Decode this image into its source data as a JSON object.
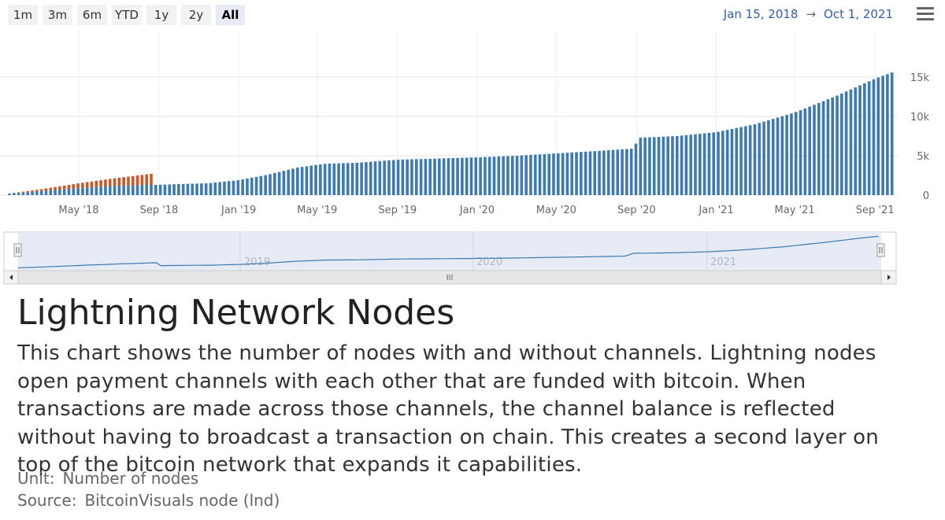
{
  "toolbar": {
    "range_buttons": [
      "1m",
      "3m",
      "6m",
      "YTD",
      "1y",
      "2y",
      "All"
    ],
    "selected": "All",
    "date_from": "Jan 15, 2018",
    "date_to": "Oct 1, 2021",
    "arrow": "→"
  },
  "colors": {
    "with_channels": "#3d7ab0",
    "without_channels": "#c8582a",
    "navigator_line": "#3d7ab0",
    "navigator_fill": "#e6ebf5"
  },
  "navigator": {
    "year_labels": [
      "2019",
      "2020",
      "2021"
    ],
    "scroll_grip": "III"
  },
  "article": {
    "title": "Lightning Network Nodes",
    "description": "This chart shows the number of nodes with and without channels. Lightning nodes open payment channels with each other that are funded with bitcoin. When transactions are made across those channels, the channel balance is reflected without having to broadcast a transaction on chain. This creates a second layer on top of the bitcoin network that expands it capabilities.",
    "unit_label": "Unit:",
    "unit_value": "Number of nodes",
    "source_label": "Source:",
    "source_value": "BitcoinVisuals node (lnd)"
  },
  "chart_data": {
    "type": "bar",
    "stacked": true,
    "x_start": "2018-01-15",
    "x_end": "2021-10-01",
    "x_tick_labels": [
      "May '18",
      "Sep '18",
      "Jan '19",
      "May '19",
      "Sep '19",
      "Jan '20",
      "May '20",
      "Sep '20",
      "Jan '21",
      "May '21",
      "Sep '21"
    ],
    "y_tick_labels": [
      "0",
      "5k",
      "10k",
      "15k"
    ],
    "ylim": [
      0,
      20000
    ],
    "grid": true,
    "series": [
      {
        "values_note": "weekly bars; blue lower segment",
        "points": [
          [
            "2018-01-15",
            200
          ],
          [
            "2018-03-01",
            500
          ],
          [
            "2018-05-01",
            900
          ],
          [
            "2018-07-01",
            1200
          ],
          [
            "2018-08-20",
            1300
          ],
          [
            "2018-08-27",
            1300
          ],
          [
            "2018-10-01",
            1400
          ],
          [
            "2018-11-15",
            1500
          ],
          [
            "2019-01-01",
            1900
          ],
          [
            "2019-02-15",
            2600
          ],
          [
            "2019-04-01",
            3500
          ],
          [
            "2019-05-15",
            4000
          ],
          [
            "2019-07-01",
            4100
          ],
          [
            "2019-09-01",
            4500
          ],
          [
            "2019-10-15",
            4600
          ],
          [
            "2020-01-01",
            4800
          ],
          [
            "2020-03-01",
            5000
          ],
          [
            "2020-05-01",
            5300
          ],
          [
            "2020-07-01",
            5600
          ],
          [
            "2020-08-25",
            5900
          ],
          [
            "2020-09-07",
            7300
          ],
          [
            "2020-11-01",
            7500
          ],
          [
            "2021-01-01",
            8000
          ],
          [
            "2021-03-01",
            9000
          ],
          [
            "2021-05-01",
            10500
          ],
          [
            "2021-07-01",
            12500
          ],
          [
            "2021-09-01",
            14800
          ],
          [
            "2021-10-01",
            15700
          ]
        ]
      },
      {
        "values_note": "orange upper segment, present only in 2018 before Sep",
        "points": [
          [
            "2018-01-15",
            0
          ],
          [
            "2018-03-01",
            200
          ],
          [
            "2018-05-01",
            600
          ],
          [
            "2018-07-01",
            1000
          ],
          [
            "2018-08-20",
            1400
          ],
          [
            "2018-08-27",
            0
          ]
        ]
      }
    ]
  }
}
